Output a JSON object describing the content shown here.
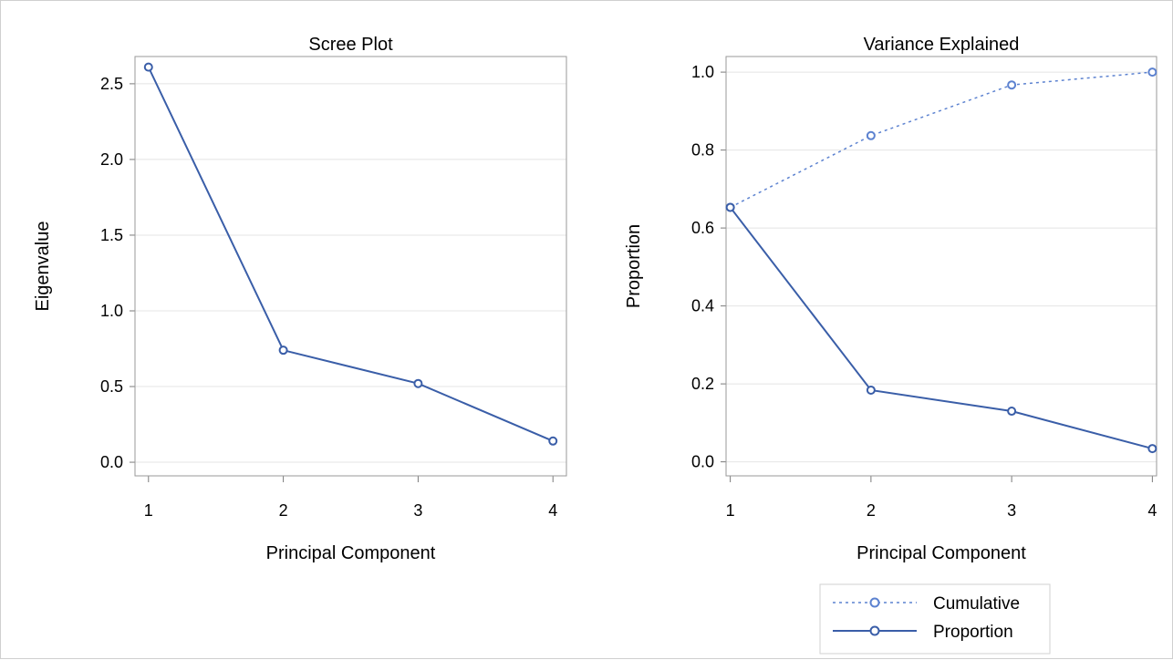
{
  "chart_data": [
    {
      "type": "line",
      "title": "Scree Plot",
      "xlabel": "Principal Component",
      "ylabel": "Eigenvalue",
      "x": [
        1,
        2,
        3,
        4
      ],
      "xticks": [
        "1",
        "2",
        "3",
        "4"
      ],
      "yticks": [
        "0.0",
        "0.5",
        "1.0",
        "1.5",
        "2.0",
        "2.5"
      ],
      "xlim": [
        0.9,
        4.1
      ],
      "ylim": [
        -0.09,
        2.68
      ],
      "grid": "horizontal",
      "series": [
        {
          "values": [
            2.61,
            0.74,
            0.52,
            0.14
          ],
          "color": "#3a5ea8",
          "style": "solid",
          "marker": "circle"
        }
      ]
    },
    {
      "type": "line",
      "title": "Variance Explained",
      "xlabel": "Principal Component",
      "ylabel": "Proportion",
      "x": [
        1,
        2,
        3,
        4
      ],
      "xticks": [
        "1",
        "2",
        "3",
        "4"
      ],
      "yticks": [
        "0.0",
        "0.2",
        "0.4",
        "0.6",
        "0.8",
        "1.0"
      ],
      "xlim": [
        0.97,
        4.03
      ],
      "ylim": [
        -0.036,
        1.04
      ],
      "grid": "horizontal",
      "legend_position": "bottom-right",
      "series": [
        {
          "name": "Cumulative",
          "values": [
            0.653,
            0.837,
            0.967,
            1.0
          ],
          "color": "#5c82d0",
          "style": "dotted",
          "marker": "circle"
        },
        {
          "name": "Proportion",
          "values": [
            0.653,
            0.184,
            0.13,
            0.034
          ],
          "color": "#3a5ea8",
          "style": "solid",
          "marker": "circle"
        }
      ]
    }
  ]
}
